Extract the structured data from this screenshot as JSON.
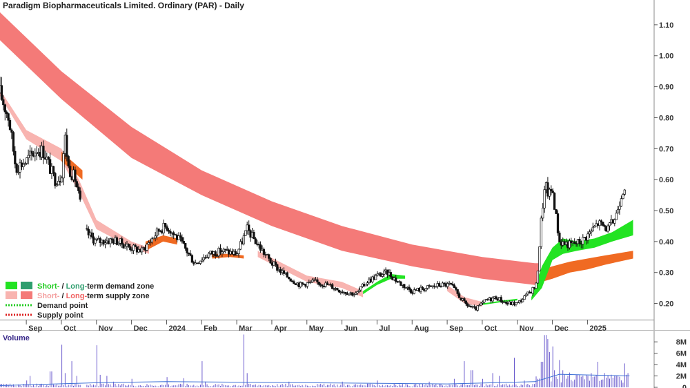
{
  "chart_data": [
    {
      "type": "candlestick",
      "title": "Paradigm Biopharmaceuticals Limited. Ordinary (PAR) - Daily",
      "ylim": [
        0.15,
        1.18
      ],
      "y_ticks": [
        "1.10",
        "1.00",
        "0.90",
        "0.80",
        "0.70",
        "0.60",
        "0.50",
        "0.40",
        "0.30",
        "0.20"
      ],
      "y_tick_values": [
        1.1,
        1.0,
        0.9,
        0.8,
        0.7,
        0.6,
        0.5,
        0.4,
        0.3,
        0.2
      ],
      "x_ticks": [
        "Sep",
        "Oct",
        "Nov",
        "Dec",
        "2024",
        "Feb",
        "Mar",
        "Apr",
        "May",
        "Jun",
        "Jul",
        "Aug",
        "Sep",
        "Oct",
        "Nov",
        "Dec",
        "2025"
      ],
      "x_tick_months": [
        0,
        1,
        2,
        3,
        4,
        5,
        6,
        7,
        8,
        9,
        10,
        11,
        12,
        13,
        14,
        15,
        16
      ],
      "x_range_months": [
        -0.75,
        17.9
      ],
      "price_path": [
        [
          -0.75,
          0.88
        ],
        [
          -0.5,
          0.8
        ],
        [
          -0.3,
          0.64
        ],
        [
          0.0,
          0.66
        ],
        [
          0.3,
          0.7
        ],
        [
          0.5,
          0.69
        ],
        [
          0.8,
          0.6
        ],
        [
          1.0,
          0.61
        ],
        [
          1.1,
          0.74
        ],
        [
          1.2,
          0.64
        ],
        [
          1.4,
          0.6
        ],
        [
          1.7,
          0.43
        ],
        [
          2.0,
          0.4
        ],
        [
          2.5,
          0.405
        ],
        [
          3.0,
          0.38
        ],
        [
          3.3,
          0.37
        ],
        [
          3.8,
          0.44
        ],
        [
          4.0,
          0.45
        ],
        [
          4.4,
          0.4
        ],
        [
          4.8,
          0.33
        ],
        [
          5.2,
          0.36
        ],
        [
          5.6,
          0.37
        ],
        [
          6.0,
          0.36
        ],
        [
          6.3,
          0.44
        ],
        [
          6.6,
          0.39
        ],
        [
          7.0,
          0.33
        ],
        [
          7.4,
          0.29
        ],
        [
          7.8,
          0.26
        ],
        [
          8.2,
          0.27
        ],
        [
          8.6,
          0.26
        ],
        [
          9.0,
          0.24
        ],
        [
          9.4,
          0.23
        ],
        [
          9.7,
          0.27
        ],
        [
          10.0,
          0.29
        ],
        [
          10.3,
          0.3
        ],
        [
          10.6,
          0.27
        ],
        [
          11.0,
          0.24
        ],
        [
          11.4,
          0.25
        ],
        [
          11.8,
          0.26
        ],
        [
          12.1,
          0.26
        ],
        [
          12.5,
          0.2
        ],
        [
          12.8,
          0.18
        ],
        [
          13.1,
          0.21
        ],
        [
          13.4,
          0.22
        ],
        [
          13.7,
          0.2
        ],
        [
          14.0,
          0.2
        ],
        [
          14.3,
          0.23
        ],
        [
          14.55,
          0.26
        ],
        [
          14.7,
          0.5
        ],
        [
          14.8,
          0.58
        ],
        [
          14.9,
          0.55
        ],
        [
          15.0,
          0.57
        ],
        [
          15.2,
          0.4
        ],
        [
          15.5,
          0.39
        ],
        [
          15.8,
          0.4
        ],
        [
          16.0,
          0.42
        ],
        [
          16.3,
          0.46
        ],
        [
          16.6,
          0.44
        ],
        [
          16.8,
          0.48
        ],
        [
          17.0,
          0.57
        ],
        [
          17.1,
          0.59
        ]
      ],
      "bands": [
        {
          "name": "long-term supply zone",
          "color": "#f47a78",
          "upper": [
            [
              -0.75,
              1.14
            ],
            [
              1,
              0.95
            ],
            [
              3,
              0.77
            ],
            [
              5,
              0.63
            ],
            [
              7,
              0.53
            ],
            [
              9,
              0.45
            ],
            [
              11,
              0.39
            ],
            [
              13,
              0.35
            ],
            [
              14.5,
              0.33
            ],
            [
              14.6,
              0.33
            ]
          ],
          "lower": [
            [
              -0.75,
              1.05
            ],
            [
              1,
              0.86
            ],
            [
              3,
              0.67
            ],
            [
              5,
              0.55
            ],
            [
              7,
              0.45
            ],
            [
              9,
              0.37
            ],
            [
              11,
              0.32
            ],
            [
              13,
              0.28
            ],
            [
              14.5,
              0.26
            ],
            [
              14.6,
              0.26
            ]
          ]
        },
        {
          "name": "short-term supply zone",
          "color": "#f8b4b0",
          "upper": [
            [
              -0.75,
              0.89
            ],
            [
              0,
              0.76
            ],
            [
              1,
              0.7
            ],
            [
              1.5,
              0.6
            ],
            [
              2,
              0.47
            ],
            [
              3,
              0.4
            ],
            [
              3.5,
              0.38
            ]
          ],
          "lower": [
            [
              -0.75,
              0.87
            ],
            [
              0,
              0.73
            ],
            [
              1,
              0.66
            ],
            [
              1.5,
              0.56
            ],
            [
              2,
              0.44
            ],
            [
              3,
              0.38
            ],
            [
              3.5,
              0.36
            ]
          ]
        },
        {
          "name": "short-term supply zone",
          "color": "#f8b4b0",
          "upper": [
            [
              6.6,
              0.37
            ],
            [
              8,
              0.29
            ],
            [
              9,
              0.27
            ],
            [
              9.6,
              0.24
            ]
          ],
          "lower": [
            [
              6.6,
              0.35
            ],
            [
              8,
              0.27
            ],
            [
              9,
              0.25
            ],
            [
              9.6,
              0.22
            ]
          ]
        },
        {
          "name": "short-term supply zone",
          "color": "#f8b4b0",
          "upper": [
            [
              12,
              0.26
            ],
            [
              12.5,
              0.22
            ],
            [
              13,
              0.205
            ]
          ],
          "lower": [
            [
              12,
              0.24
            ],
            [
              12.5,
              0.2
            ],
            [
              13,
              0.19
            ]
          ]
        },
        {
          "name": "long-term supply zone",
          "color": "#f06a22",
          "upper": [
            [
              1.0,
              0.69
            ],
            [
              1.3,
              0.66
            ],
            [
              1.6,
              0.63
            ]
          ],
          "lower": [
            [
              1.0,
              0.66
            ],
            [
              1.3,
              0.63
            ],
            [
              1.6,
              0.6
            ]
          ]
        },
        {
          "name": "long-term supply zone",
          "color": "#f06a22",
          "upper": [
            [
              3.4,
              0.4
            ],
            [
              3.9,
              0.42
            ],
            [
              4.3,
              0.41
            ]
          ],
          "lower": [
            [
              3.4,
              0.37
            ],
            [
              3.9,
              0.4
            ],
            [
              4.3,
              0.39
            ]
          ]
        },
        {
          "name": "long-term supply zone",
          "color": "#f06a22",
          "upper": [
            [
              5.3,
              0.36
            ],
            [
              5.8,
              0.36
            ],
            [
              6.2,
              0.355
            ]
          ],
          "lower": [
            [
              5.3,
              0.345
            ],
            [
              5.8,
              0.35
            ],
            [
              6.2,
              0.345
            ]
          ]
        },
        {
          "name": "short-term demand zone",
          "color": "#22e322",
          "upper": [
            [
              9.6,
              0.24
            ],
            [
              10.0,
              0.27
            ],
            [
              10.4,
              0.295
            ],
            [
              10.8,
              0.29
            ]
          ],
          "lower": [
            [
              9.6,
              0.23
            ],
            [
              10.0,
              0.26
            ],
            [
              10.4,
              0.28
            ],
            [
              10.8,
              0.28
            ]
          ]
        },
        {
          "name": "short-term demand zone",
          "color": "#22e322",
          "upper": [
            [
              13.0,
              0.2
            ],
            [
              13.6,
              0.21
            ],
            [
              14.0,
              0.215
            ]
          ],
          "lower": [
            [
              13.0,
              0.195
            ],
            [
              13.6,
              0.205
            ],
            [
              14.0,
              0.21
            ]
          ]
        },
        {
          "name": "long-term supply zone",
          "color": "#f06a22",
          "upper": [
            [
              14.55,
              0.28
            ],
            [
              14.7,
              0.31
            ],
            [
              15.0,
              0.32
            ],
            [
              15.5,
              0.335
            ],
            [
              16,
              0.345
            ],
            [
              16.5,
              0.355
            ],
            [
              17.3,
              0.37
            ]
          ],
          "lower": [
            [
              14.55,
              0.26
            ],
            [
              14.7,
              0.27
            ],
            [
              15.0,
              0.28
            ],
            [
              15.5,
              0.3
            ],
            [
              16,
              0.31
            ],
            [
              16.5,
              0.325
            ],
            [
              17.3,
              0.345
            ]
          ]
        },
        {
          "name": "short-term demand zone",
          "color": "#22e322",
          "upper": [
            [
              14.4,
              0.22
            ],
            [
              14.7,
              0.32
            ],
            [
              15.0,
              0.38
            ],
            [
              15.3,
              0.41
            ],
            [
              15.7,
              0.4
            ],
            [
              16.2,
              0.41
            ],
            [
              16.7,
              0.43
            ],
            [
              17.3,
              0.47
            ]
          ],
          "lower": [
            [
              14.4,
              0.21
            ],
            [
              14.7,
              0.25
            ],
            [
              15.0,
              0.34
            ],
            [
              15.3,
              0.36
            ],
            [
              15.7,
              0.37
            ],
            [
              16.2,
              0.38
            ],
            [
              16.7,
              0.4
            ],
            [
              17.3,
              0.42
            ]
          ]
        }
      ],
      "legend": [
        {
          "swatches": [
            "#22e322",
            "#2e9e6e"
          ],
          "parts": [
            {
              "text": "Short-",
              "color": "#22cc22"
            },
            {
              "text": " / ",
              "color": "#222222"
            },
            {
              "text": "Long-",
              "color": "#2e9e6e"
            },
            {
              "text": "term demand zone",
              "color": "#222222"
            }
          ]
        },
        {
          "swatches": [
            "#f8b4b0",
            "#f47a78"
          ],
          "parts": [
            {
              "text": "Short-",
              "color": "#f4a0a0"
            },
            {
              "text": " / ",
              "color": "#222222"
            },
            {
              "text": "Long-",
              "color": "#f06060"
            },
            {
              "text": "term supply zone",
              "color": "#222222"
            }
          ]
        },
        {
          "dotted": "#22cc22",
          "parts": [
            {
              "text": "Demand point",
              "color": "#222222"
            }
          ]
        },
        {
          "dotted": "#dd2222",
          "parts": [
            {
              "text": "Supply point",
              "color": "#222222"
            }
          ]
        }
      ]
    },
    {
      "type": "bar",
      "title": "Volume",
      "y_ticks": [
        "8M",
        "6M",
        "4M",
        "2M",
        "0"
      ],
      "y_tick_values": [
        8,
        6,
        4,
        2,
        0
      ],
      "ylim": [
        0,
        9.6
      ],
      "unit": "M",
      "bar_color": "#6a5acd",
      "average_color": "#3b6fd6",
      "spikes": [
        [
          0.0,
          1.2
        ],
        [
          0.1,
          2.0
        ],
        [
          0.7,
          2.8
        ],
        [
          1.0,
          7.5
        ],
        [
          1.1,
          2.5
        ],
        [
          1.3,
          4.6
        ],
        [
          1.45,
          2.0
        ],
        [
          2.0,
          7.4
        ],
        [
          2.1,
          2.2
        ],
        [
          2.3,
          2.0
        ],
        [
          2.5,
          1.0
        ],
        [
          3.0,
          1.5
        ],
        [
          4.0,
          1.8
        ],
        [
          4.5,
          1.6
        ],
        [
          5.0,
          4.6
        ],
        [
          5.1,
          1.0
        ],
        [
          6.2,
          9.3
        ],
        [
          6.3,
          2.5
        ],
        [
          7.5,
          1.0
        ],
        [
          9.0,
          1.0
        ],
        [
          10.0,
          1.2
        ],
        [
          11.5,
          1.0
        ],
        [
          12.2,
          1.5
        ],
        [
          12.5,
          4.6
        ],
        [
          12.7,
          3.0
        ],
        [
          13.0,
          1.5
        ],
        [
          13.3,
          2.5
        ],
        [
          13.5,
          2.0
        ],
        [
          13.9,
          5.2
        ],
        [
          14.2,
          1.2
        ],
        [
          14.6,
          1.5
        ],
        [
          14.7,
          4.5
        ],
        [
          14.8,
          9.2
        ],
        [
          14.85,
          8.5
        ],
        [
          14.9,
          6.2
        ],
        [
          15.0,
          7.2
        ],
        [
          15.05,
          3.0
        ],
        [
          15.2,
          4.8
        ],
        [
          15.3,
          3.0
        ],
        [
          15.5,
          2.6
        ],
        [
          15.7,
          2.2
        ],
        [
          16.1,
          2.5
        ],
        [
          16.3,
          4.5
        ],
        [
          16.5,
          2.5
        ],
        [
          16.8,
          2.0
        ],
        [
          17.05,
          4.2
        ],
        [
          17.15,
          2.5
        ]
      ]
    }
  ]
}
